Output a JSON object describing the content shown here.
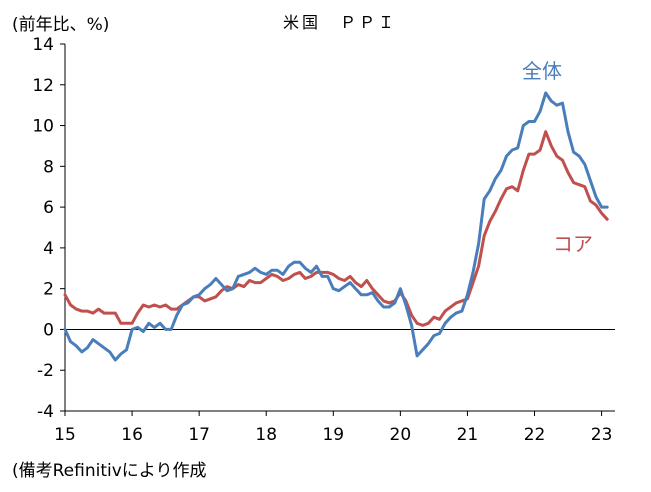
{
  "chart_data": {
    "type": "line",
    "title": "米国　ＰＰＩ",
    "ylabel": "(前年比、%)",
    "xlabel": "",
    "ylim": [
      -4,
      14
    ],
    "yticks": [
      14,
      12,
      10,
      8,
      6,
      4,
      2,
      0,
      -2,
      -4
    ],
    "xlim": [
      2015.0,
      2023.2
    ],
    "xticks": [
      {
        "value": 2015.0,
        "label": "15"
      },
      {
        "value": 2016.0,
        "label": "16"
      },
      {
        "value": 2017.0,
        "label": "17"
      },
      {
        "value": 2018.0,
        "label": "18"
      },
      {
        "value": 2019.0,
        "label": "19"
      },
      {
        "value": 2020.0,
        "label": "20"
      },
      {
        "value": 2021.0,
        "label": "21"
      },
      {
        "value": 2022.0,
        "label": "22"
      },
      {
        "value": 2023.0,
        "label": "23"
      }
    ],
    "grid": false,
    "zero_line": true,
    "series": [
      {
        "name": "全体",
        "color": "#4a7ebb",
        "x": [
          2015.0,
          2015.083,
          2015.167,
          2015.25,
          2015.333,
          2015.417,
          2015.5,
          2015.583,
          2015.667,
          2015.75,
          2015.833,
          2015.917,
          2016.0,
          2016.083,
          2016.167,
          2016.25,
          2016.333,
          2016.417,
          2016.5,
          2016.583,
          2016.667,
          2016.75,
          2016.833,
          2016.917,
          2017.0,
          2017.083,
          2017.167,
          2017.25,
          2017.333,
          2017.417,
          2017.5,
          2017.583,
          2017.667,
          2017.75,
          2017.833,
          2017.917,
          2018.0,
          2018.083,
          2018.167,
          2018.25,
          2018.333,
          2018.417,
          2018.5,
          2018.583,
          2018.667,
          2018.75,
          2018.833,
          2018.917,
          2019.0,
          2019.083,
          2019.167,
          2019.25,
          2019.333,
          2019.417,
          2019.5,
          2019.583,
          2019.667,
          2019.75,
          2019.833,
          2019.917,
          2020.0,
          2020.083,
          2020.167,
          2020.25,
          2020.333,
          2020.417,
          2020.5,
          2020.583,
          2020.667,
          2020.75,
          2020.833,
          2020.917,
          2021.0,
          2021.083,
          2021.167,
          2021.25,
          2021.333,
          2021.417,
          2021.5,
          2021.583,
          2021.667,
          2021.75,
          2021.833,
          2021.917,
          2022.0,
          2022.083,
          2022.167,
          2022.25,
          2022.333,
          2022.417,
          2022.5,
          2022.583,
          2022.667,
          2022.75,
          2022.833,
          2022.917,
          2023.0,
          2023.083
        ],
        "values": [
          0.0,
          -0.6,
          -0.8,
          -1.1,
          -0.9,
          -0.5,
          -0.7,
          -0.9,
          -1.1,
          -1.5,
          -1.2,
          -1.0,
          0.0,
          0.1,
          -0.1,
          0.3,
          0.1,
          0.3,
          0.0,
          0.0,
          0.7,
          1.2,
          1.3,
          1.6,
          1.7,
          2.0,
          2.2,
          2.5,
          2.2,
          1.9,
          2.0,
          2.6,
          2.7,
          2.8,
          3.0,
          2.8,
          2.7,
          2.9,
          2.9,
          2.7,
          3.1,
          3.3,
          3.3,
          3.0,
          2.8,
          3.1,
          2.6,
          2.6,
          2.0,
          1.9,
          2.1,
          2.3,
          2.0,
          1.7,
          1.7,
          1.8,
          1.4,
          1.1,
          1.1,
          1.3,
          2.0,
          1.2,
          0.2,
          -1.3,
          -1.0,
          -0.7,
          -0.3,
          -0.2,
          0.3,
          0.6,
          0.8,
          0.9,
          1.7,
          2.8,
          4.2,
          6.4,
          6.8,
          7.4,
          7.8,
          8.5,
          8.8,
          8.9,
          10.0,
          10.2,
          10.2,
          10.7,
          11.6,
          11.2,
          11.0,
          11.1,
          9.7,
          8.7,
          8.5,
          8.1,
          7.3,
          6.5,
          6.0,
          6.0
        ]
      },
      {
        "name": "コア",
        "color": "#c0504d",
        "x": [
          2015.0,
          2015.083,
          2015.167,
          2015.25,
          2015.333,
          2015.417,
          2015.5,
          2015.583,
          2015.667,
          2015.75,
          2015.833,
          2015.917,
          2016.0,
          2016.083,
          2016.167,
          2016.25,
          2016.333,
          2016.417,
          2016.5,
          2016.583,
          2016.667,
          2016.75,
          2016.833,
          2016.917,
          2017.0,
          2017.083,
          2017.167,
          2017.25,
          2017.333,
          2017.417,
          2017.5,
          2017.583,
          2017.667,
          2017.75,
          2017.833,
          2017.917,
          2018.0,
          2018.083,
          2018.167,
          2018.25,
          2018.333,
          2018.417,
          2018.5,
          2018.583,
          2018.667,
          2018.75,
          2018.833,
          2018.917,
          2019.0,
          2019.083,
          2019.167,
          2019.25,
          2019.333,
          2019.417,
          2019.5,
          2019.583,
          2019.667,
          2019.75,
          2019.833,
          2019.917,
          2020.0,
          2020.083,
          2020.167,
          2020.25,
          2020.333,
          2020.417,
          2020.5,
          2020.583,
          2020.667,
          2020.75,
          2020.833,
          2020.917,
          2021.0,
          2021.083,
          2021.167,
          2021.25,
          2021.333,
          2021.417,
          2021.5,
          2021.583,
          2021.667,
          2021.75,
          2021.833,
          2021.917,
          2022.0,
          2022.083,
          2022.167,
          2022.25,
          2022.333,
          2022.417,
          2022.5,
          2022.583,
          2022.667,
          2022.75,
          2022.833,
          2022.917,
          2023.0,
          2023.083
        ],
        "values": [
          1.7,
          1.2,
          1.0,
          0.9,
          0.9,
          0.8,
          1.0,
          0.8,
          0.8,
          0.8,
          0.3,
          0.3,
          0.3,
          0.8,
          1.2,
          1.1,
          1.2,
          1.1,
          1.2,
          1.0,
          1.0,
          1.2,
          1.4,
          1.6,
          1.6,
          1.4,
          1.5,
          1.6,
          1.9,
          2.1,
          2.0,
          2.2,
          2.1,
          2.4,
          2.3,
          2.3,
          2.5,
          2.7,
          2.6,
          2.4,
          2.5,
          2.7,
          2.8,
          2.5,
          2.6,
          2.8,
          2.8,
          2.8,
          2.7,
          2.5,
          2.4,
          2.6,
          2.3,
          2.1,
          2.4,
          2.0,
          1.7,
          1.4,
          1.3,
          1.4,
          1.8,
          1.4,
          0.7,
          0.3,
          0.2,
          0.3,
          0.6,
          0.5,
          0.9,
          1.1,
          1.3,
          1.4,
          1.5,
          2.3,
          3.1,
          4.6,
          5.3,
          5.8,
          6.4,
          6.9,
          7.0,
          6.8,
          7.8,
          8.6,
          8.6,
          8.8,
          9.7,
          9.0,
          8.5,
          8.3,
          7.7,
          7.2,
          7.1,
          7.0,
          6.3,
          6.1,
          5.7,
          5.4
        ]
      }
    ]
  },
  "annotations": {
    "series_label_all": "全体",
    "series_label_core": "コア"
  },
  "source_note": "(備考Refinitivにより作成",
  "colors": {
    "axis": "#000000",
    "series_all": "#4a7ebb",
    "series_core": "#c0504d"
  }
}
